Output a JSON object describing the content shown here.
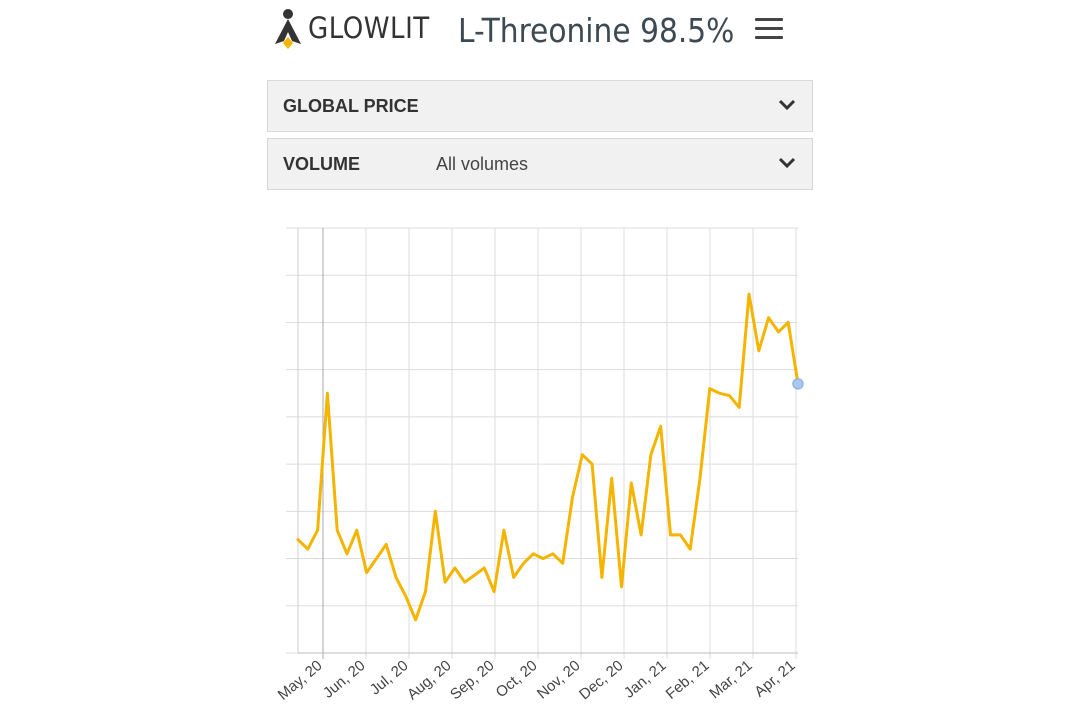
{
  "header": {
    "logo_text": "GLOWLIT",
    "product_title": "L-Threonine 98.5%"
  },
  "filters": {
    "global_price": {
      "label": "GLOBAL PRICE"
    },
    "volume": {
      "label": "VOLUME",
      "value": "All volumes"
    }
  },
  "colors": {
    "accent": "#f5b400",
    "text_dark": "#333333",
    "grid": "#dddddd",
    "marker": "#a9c8ef"
  },
  "chart_data": {
    "type": "line",
    "title": "",
    "xlabel": "",
    "ylabel": "",
    "grid": true,
    "x_tick_labels": [
      "May, 20",
      "Jun, 20",
      "Jul, 20",
      "Aug, 20",
      "Sep, 20",
      "Oct, 20",
      "Nov, 20",
      "Dec, 20",
      "Jan, 21",
      "Feb, 21",
      "Mar, 21",
      "Apr, 21"
    ],
    "ylim": [
      0,
      9
    ],
    "series": [
      {
        "values": [
          2.4,
          2.2,
          2.6,
          5.5,
          2.6,
          2.1,
          2.6,
          1.7,
          2.0,
          2.3,
          1.6,
          1.2,
          0.7,
          1.3,
          3.0,
          1.5,
          1.8,
          1.5,
          1.65,
          1.8,
          1.3,
          2.6,
          1.6,
          1.9,
          2.1,
          2.0,
          2.1,
          1.9,
          3.3,
          4.2,
          4.0,
          1.6,
          3.7,
          1.4,
          3.6,
          2.5,
          4.2,
          4.8,
          2.5,
          2.5,
          2.2,
          3.7,
          5.6,
          5.5,
          5.45,
          5.2,
          7.6,
          6.4,
          7.1,
          6.8,
          7.0,
          5.7
        ],
        "color": "#f5b400"
      }
    ]
  }
}
